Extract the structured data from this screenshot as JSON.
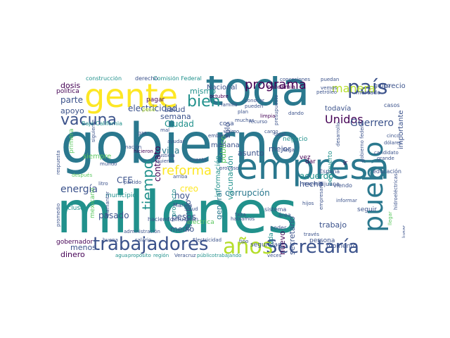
{
  "word_cloud": {
    "palette": [
      "#440154",
      "#3b528b",
      "#21918c",
      "#2a788e",
      "#5ec962",
      "#b5de2b",
      "#fde725"
    ],
    "words": [
      {
        "text": "gobierno",
        "color": "#2a788e"
      },
      {
        "text": "millones",
        "color": "#21918c"
      },
      {
        "text": "toda",
        "color": "#2a788e"
      },
      {
        "text": "empresa",
        "color": "#2a788e"
      },
      {
        "text": "gente",
        "color": "#fde725"
      },
      {
        "text": "trabajadores",
        "color": "#3b528b"
      },
      {
        "text": "Secretaría",
        "color": "#3b528b"
      },
      {
        "text": "años",
        "color": "#b5de2b"
      },
      {
        "text": "pueblo",
        "color": "#2a788e"
      },
      {
        "text": "país",
        "color": "#3b528b"
      },
      {
        "text": "vacuna",
        "color": "#3b528b"
      },
      {
        "text": "programa",
        "color": "#440154"
      },
      {
        "text": "manera",
        "color": "#b5de2b"
      },
      {
        "text": "bien",
        "color": "#21918c"
      },
      {
        "text": "reforma",
        "color": "#fde725"
      },
      {
        "text": "energía",
        "color": "#3b528b"
      },
      {
        "text": "tiempo",
        "color": "#21918c"
      },
      {
        "text": "Unidos",
        "color": "#440154"
      },
      {
        "text": "Guerrero",
        "color": "#3b528b"
      },
      {
        "text": "electricidad",
        "color": "#3b528b"
      },
      {
        "text": "dosis",
        "color": "#440154"
      },
      {
        "text": "mismo",
        "color": "#21918c"
      },
      {
        "text": "parte",
        "color": "#3b528b"
      },
      {
        "text": "apoyo",
        "color": "#3b528b"
      },
      {
        "text": "salud",
        "color": "#3b528b"
      },
      {
        "text": "semana",
        "color": "#3b528b"
      },
      {
        "text": "Ciudad",
        "color": "#21918c"
      },
      {
        "text": "vida",
        "color": "#2a788e"
      },
      {
        "text": "contrato",
        "color": "#440154"
      },
      {
        "text": "pasado",
        "color": "#3b528b"
      },
      {
        "text": "hoy",
        "color": "#3b528b"
      },
      {
        "text": "creo",
        "color": "#fde725"
      },
      {
        "text": "pesos",
        "color": "#3b528b"
      },
      {
        "text": "medio",
        "color": "#3b528b"
      },
      {
        "text": "menos",
        "color": "#3b528b"
      },
      {
        "text": "dinero",
        "color": "#440154"
      },
      {
        "text": "corrupción",
        "color": "#2a788e"
      },
      {
        "text": "acuerdo",
        "color": "#21918c"
      },
      {
        "text": "mejor",
        "color": "#3b528b"
      },
      {
        "text": "hecho",
        "color": "#3b528b"
      },
      {
        "text": "trabajo",
        "color": "#3b528b"
      },
      {
        "text": "nuevo",
        "color": "#440154"
      },
      {
        "text": "asunto",
        "color": "#3b528b"
      },
      {
        "text": "público",
        "color": "#5ec962"
      },
      {
        "text": "importante",
        "color": "#3b528b"
      },
      {
        "text": "secretario",
        "color": "#3b528b"
      },
      {
        "text": "general",
        "color": "#2a788e"
      },
      {
        "text": "vacunación",
        "color": "#21918c"
      },
      {
        "text": "información",
        "color": "#21918c"
      },
      {
        "text": "ejemplo",
        "color": "#3b528b"
      },
      {
        "text": "sólo",
        "color": "#3b528b"
      },
      {
        "text": "CFE",
        "color": "#3b528b"
      },
      {
        "text": "mañana",
        "color": "#3b528b"
      },
      {
        "text": "todavía",
        "color": "#3b528b"
      },
      {
        "text": "Nacional",
        "color": "#3b528b"
      },
      {
        "text": "precio",
        "color": "#3b528b"
      },
      {
        "text": "política",
        "color": "#440154"
      },
      {
        "text": "gobernador",
        "color": "#440154"
      },
      {
        "text": "seguridad",
        "color": "#3b528b"
      },
      {
        "text": "persona",
        "color": "#3b528b"
      },
      {
        "text": "momento",
        "color": "#3b528b"
      },
      {
        "text": "seguir",
        "color": "#3b528b"
      },
      {
        "text": "siempre",
        "color": "#5ec962"
      },
      {
        "text": "primera",
        "color": "#5ec962"
      },
      {
        "text": "proyecto",
        "color": "#21918c"
      },
      {
        "text": "municipio",
        "color": "#21918c"
      },
      {
        "text": "incluso",
        "color": "#21918c"
      },
      {
        "text": "negocio",
        "color": "#21918c"
      },
      {
        "text": "ir",
        "color": "#440154"
      },
      {
        "text": "vez",
        "color": "#440154"
      },
      {
        "text": "dar",
        "color": "#440154"
      },
      {
        "text": "aeropuerto",
        "color": "#21918c"
      },
      {
        "text": "cosa",
        "color": "#3b528b"
      },
      {
        "text": "eléctrica",
        "color": "#5ec962"
      },
      {
        "text": "cada",
        "color": "#21918c"
      },
      {
        "text": "Marina",
        "color": "#3b528b"
      },
      {
        "text": "situación",
        "color": "#3b528b"
      },
      {
        "text": "mexicano",
        "color": "#5ec962"
      },
      {
        "text": "haciendo",
        "color": "#3b528b"
      },
      {
        "text": "pagar",
        "color": "#440154"
      },
      {
        "text": "peso",
        "color": "#b5de2b"
      },
      {
        "text": "construcción",
        "color": "#21918c"
      },
      {
        "text": "derecho",
        "color": "#3b528b"
      },
      {
        "text": "Comisión Federal",
        "color": "#21918c"
      },
      {
        "text": "Baja California",
        "color": "#21918c"
      },
      {
        "text": "educación",
        "color": "#3b528b"
      },
      {
        "text": "España",
        "color": "#3b528b"
      },
      {
        "text": "Tijuana",
        "color": "#3b528b"
      },
      {
        "text": "viendo",
        "color": "#3b528b"
      },
      {
        "text": "sistema",
        "color": "#3b528b"
      },
      {
        "text": "poder",
        "color": "#3b528b"
      },
      {
        "text": "área",
        "color": "#3b528b"
      },
      {
        "text": "mercado",
        "color": "#3b528b"
      },
      {
        "text": "casos",
        "color": "#3b528b"
      },
      {
        "text": "grupo",
        "color": "#3b528b"
      },
      {
        "text": "pandemia",
        "color": "#440154"
      },
      {
        "text": "concesiones",
        "color": "#3b528b"
      },
      {
        "text": "plan",
        "color": "#3b528b"
      },
      {
        "text": "limpia",
        "color": "#440154"
      },
      {
        "text": "dando",
        "color": "#3b528b"
      },
      {
        "text": "presupuesto",
        "color": "#3b528b"
      },
      {
        "text": "conocer",
        "color": "#3b528b"
      },
      {
        "text": "pueden",
        "color": "#3b528b"
      },
      {
        "text": "muchas",
        "color": "#3b528b"
      },
      {
        "text": "cargo",
        "color": "#3b528b"
      },
      {
        "text": "total",
        "color": "#3b528b"
      },
      {
        "text": "hicieron",
        "color": "#440154"
      },
      {
        "text": "mundo",
        "color": "#3b528b"
      },
      {
        "text": "después",
        "color": "#5ec962"
      },
      {
        "text": "partido",
        "color": "#3b528b"
      },
      {
        "text": "Salud",
        "color": "#3b528b"
      },
      {
        "text": "recurso",
        "color": "#3b528b"
      },
      {
        "text": "embargo",
        "color": "#3b528b"
      },
      {
        "text": "empresario",
        "color": "#3b528b"
      },
      {
        "text": "mayoría",
        "color": "#3b528b"
      },
      {
        "text": "desarrollo",
        "color": "#3b528b"
      },
      {
        "text": "gobierno federal",
        "color": "#3b528b"
      },
      {
        "text": "hidroeléctricas",
        "color": "#3b528b"
      },
      {
        "text": "candidato",
        "color": "#3b528b"
      },
      {
        "text": "grande",
        "color": "#3b528b"
      },
      {
        "text": "informar",
        "color": "#3b528b"
      },
      {
        "text": "llegar",
        "color": "#5ec962"
      },
      {
        "text": "falta",
        "color": "#3b528b"
      },
      {
        "text": "hablamos",
        "color": "#3b528b"
      },
      {
        "text": "agua",
        "color": "#21918c"
      },
      {
        "text": "propósito",
        "color": "#21918c"
      },
      {
        "text": "región",
        "color": "#21918c"
      },
      {
        "text": "Veracruz",
        "color": "#3b528b"
      },
      {
        "text": "públicotrabajando",
        "color": "#21918c"
      },
      {
        "text": "salario",
        "color": "#3b528b"
      },
      {
        "text": "Electricidad",
        "color": "#3b528b"
      },
      {
        "text": "buena",
        "color": "#3b528b"
      },
      {
        "text": "administración",
        "color": "#3b528b"
      },
      {
        "text": "diamantar",
        "color": "#3b528b"
      },
      {
        "text": "promedio",
        "color": "#3b528b"
      },
      {
        "text": "respuesta",
        "color": "#3b528b"
      },
      {
        "text": "octubre",
        "color": "#440154"
      },
      {
        "text": "último",
        "color": "#3b528b"
      },
      {
        "text": "puedan",
        "color": "#3b528b"
      },
      {
        "text": "vemos",
        "color": "#3b528b"
      },
      {
        "text": "petróleo",
        "color": "#3b528b"
      },
      {
        "text": "cinco",
        "color": "#3b528b"
      },
      {
        "text": "dólares",
        "color": "#3b528b"
      },
      {
        "text": "llega",
        "color": "#3b528b"
      },
      {
        "text": "gas",
        "color": "#3b528b"
      },
      {
        "text": "mal",
        "color": "#3b528b"
      },
      {
        "text": "arriba",
        "color": "#3b528b"
      },
      {
        "text": "litro",
        "color": "#3b528b"
      },
      {
        "text": "tipo",
        "color": "#3b528b"
      },
      {
        "text": "veces",
        "color": "#3b528b"
      },
      {
        "text": "cuenta",
        "color": "#3b528b"
      },
      {
        "text": "proceso",
        "color": "#3b528b"
      },
      {
        "text": "justicia",
        "color": "#3b528b"
      },
      {
        "text": "ayudar",
        "color": "#3b528b"
      },
      {
        "text": "quieren",
        "color": "#3b528b"
      },
      {
        "text": "nación",
        "color": "#3b528b"
      },
      {
        "text": "siguiente",
        "color": "#3b528b"
      },
      {
        "text": "familia",
        "color": "#3b528b"
      },
      {
        "text": "hijos",
        "color": "#3b528b"
      },
      {
        "text": "través",
        "color": "#3b528b"
      },
      {
        "text": "lugar",
        "color": "#3b528b"
      }
    ]
  }
}
